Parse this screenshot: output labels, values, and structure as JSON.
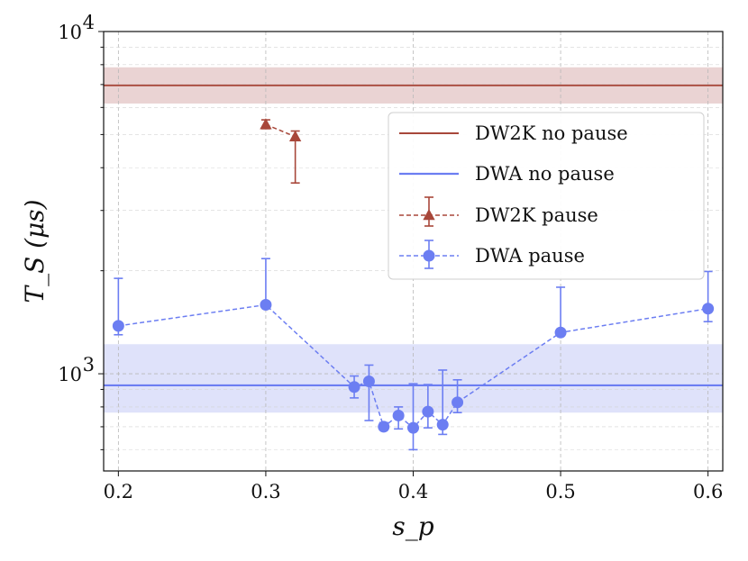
{
  "chart_data": {
    "type": "line",
    "title": "",
    "xlabel": "s_p",
    "ylabel": "T_S (μs)",
    "xlim": [
      0.19,
      0.61
    ],
    "ylim": [
      520,
      10000
    ],
    "yscale": "log",
    "xticks": [
      0.2,
      0.3,
      0.4,
      0.5,
      0.6
    ],
    "xtick_labels": [
      "0.2",
      "0.3",
      "0.4",
      "0.5",
      "0.6"
    ],
    "ytick_labels": [
      {
        "value": 1000,
        "base": "10",
        "exp": "3"
      },
      {
        "value": 10000,
        "base": "10",
        "exp": "4"
      }
    ],
    "grid": true,
    "legend_position": "upper-right",
    "colors": {
      "dw2k": "#a8473a",
      "dwa": "#6c7ef2",
      "dw2k_band": "#ead3d3",
      "dwa_band": "#dfe2fa"
    },
    "series": [
      {
        "name": "DW2K no pause",
        "style": "hline",
        "value": 6960,
        "band": [
          6160,
          7860
        ]
      },
      {
        "name": "DWA no pause",
        "style": "hline",
        "value": 925,
        "band": [
          770,
          1220
        ]
      },
      {
        "name": "DW2K pause",
        "style": "dashed-markers-triangle",
        "x": [
          0.3,
          0.32
        ],
        "y": [
          5350,
          4930
        ],
        "err_low": [
          5200,
          3610
        ],
        "err_high": [
          5520,
          5120
        ]
      },
      {
        "name": "DWA pause",
        "style": "dashed-markers-circle",
        "x": [
          0.2,
          0.3,
          0.36,
          0.37,
          0.38,
          0.39,
          0.4,
          0.41,
          0.42,
          0.43,
          0.5,
          0.6
        ],
        "y": [
          1380,
          1590,
          915,
          950,
          700,
          755,
          695,
          775,
          710,
          825,
          1320,
          1550
        ],
        "err_low": [
          1300,
          1560,
          850,
          730,
          685,
          690,
          600,
          695,
          665,
          770,
          1300,
          1420
        ],
        "err_high": [
          1900,
          2170,
          985,
          1060,
          720,
          800,
          935,
          930,
          1025,
          960,
          1790,
          1990
        ]
      }
    ]
  }
}
